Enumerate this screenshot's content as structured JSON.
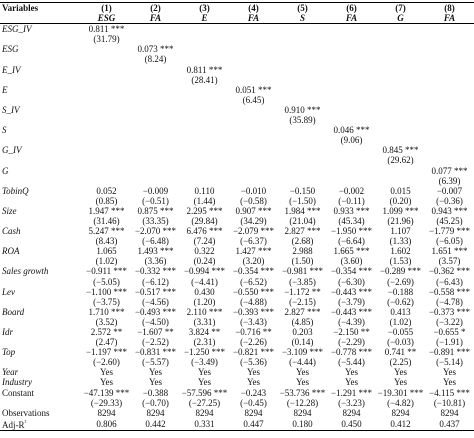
{
  "table": {
    "header": [
      "Variables",
      "(1)",
      "(2)",
      "(3)",
      "(4)",
      "(5)",
      "(6)",
      "(7)",
      "(8)"
    ],
    "subheader": [
      "ESG",
      "FA",
      "E",
      "FA",
      "S",
      "FA",
      "G",
      "FA"
    ],
    "rows": [
      {
        "label": "ESG_IV",
        "values": [
          "0.811 ***",
          null,
          null,
          null,
          null,
          null,
          null,
          null
        ],
        "tstats": [
          "(31.79)",
          null,
          null,
          null,
          null,
          null,
          null,
          null
        ]
      },
      {
        "label": "ESG",
        "values": [
          null,
          "0.073 ***",
          null,
          null,
          null,
          null,
          null,
          null
        ],
        "tstats": [
          null,
          "(8.24)",
          null,
          null,
          null,
          null,
          null,
          null
        ]
      },
      {
        "label": "E_IV",
        "values": [
          null,
          null,
          "0.811 ***",
          null,
          null,
          null,
          null,
          null
        ],
        "tstats": [
          null,
          null,
          "(28.41)",
          null,
          null,
          null,
          null,
          null
        ]
      },
      {
        "label": "E",
        "values": [
          null,
          null,
          null,
          "0.051 ***",
          null,
          null,
          null,
          null
        ],
        "tstats": [
          null,
          null,
          null,
          "(6.45)",
          null,
          null,
          null,
          null
        ]
      },
      {
        "label": "S_IV",
        "values": [
          null,
          null,
          null,
          null,
          "0.910 ***",
          null,
          null,
          null
        ],
        "tstats": [
          null,
          null,
          null,
          null,
          "(35.89)",
          null,
          null,
          null
        ]
      },
      {
        "label": "S",
        "values": [
          null,
          null,
          null,
          null,
          null,
          "0.046 ***",
          null,
          null
        ],
        "tstats": [
          null,
          null,
          null,
          null,
          null,
          "(9.06)",
          null,
          null
        ]
      },
      {
        "label": "G_IV",
        "values": [
          null,
          null,
          null,
          null,
          null,
          null,
          "0.845 ***",
          null
        ],
        "tstats": [
          null,
          null,
          null,
          null,
          null,
          null,
          "(29.62)",
          null
        ]
      },
      {
        "label": "G",
        "values": [
          null,
          null,
          null,
          null,
          null,
          null,
          null,
          "0.077 ***"
        ],
        "tstats": [
          null,
          null,
          null,
          null,
          null,
          null,
          null,
          "(6.39)"
        ]
      },
      {
        "label": "TobinQ",
        "values": [
          "0.052",
          "−0.009",
          "0.110",
          "−0.010",
          "−0.150",
          "−0.002",
          "0.015",
          "−0.007"
        ],
        "tstats": [
          "(0.85)",
          "(−0.51)",
          "(1.44)",
          "(−0.58)",
          "(−1.50)",
          "(−0.11)",
          "(0.20)",
          "(−0.36)"
        ]
      },
      {
        "label": "Size",
        "values": [
          "1.947 ***",
          "0.875 ***",
          "2.295 ***",
          "0.907 ***",
          "1.984 ***",
          "0.933 ***",
          "1.099 ***",
          "0.943 ***"
        ],
        "tstats": [
          "(31.46)",
          "(33.35)",
          "(29.84)",
          "(34.29)",
          "(21.04)",
          "(45.34)",
          "(21.96)",
          "(45.25)"
        ]
      },
      {
        "label": "Cash",
        "values": [
          "5.247 ***",
          "−2.070 ***",
          "6.476 ***",
          "−2.079 ***",
          "2.827 ***",
          "−1.950 ***",
          "1.107",
          "−1.779 ***"
        ],
        "tstats": [
          "(8.43)",
          "(−6.48)",
          "(7.24)",
          "(−6.37)",
          "(2.68)",
          "(−6.64)",
          "(1.33)",
          "(−6.05)"
        ]
      },
      {
        "label": "ROA",
        "values": [
          "1.065",
          "1.493 ***",
          "0.322",
          "1.427 ***",
          "2.988",
          "1.665 ***",
          "1.602",
          "1.651 ***"
        ],
        "tstats": [
          "(1.02)",
          "(3.36)",
          "(0.24)",
          "(3.20)",
          "(1.50)",
          "(3.60)",
          "(1.53)",
          "(3.57)"
        ]
      },
      {
        "label": "Sales growth",
        "values": [
          "−0.911 ***",
          "−0.332 ***",
          "−0.994 ***",
          "−0.354 ***",
          "−0.981 ***",
          "−0.354 ***",
          "−0.289 ***",
          "−0.362 ***"
        ],
        "tstats": [
          "(−5.05)",
          "(−6.12)",
          "(−4.41)",
          "(−6.52)",
          "(−3.85)",
          "(−6.30)",
          "(−2.69)",
          "(−6.43)"
        ]
      },
      {
        "label": "Lev",
        "values": [
          "−1.100 ***",
          "−0.517 ***",
          "0.430",
          "−0.550 ***",
          "−1.172 **",
          "−0.443 ***",
          "−0.188",
          "−0.558 ***"
        ],
        "tstats": [
          "(−3.75)",
          "(−4.56)",
          "(1.20)",
          "(−4.88)",
          "(−2.15)",
          "(−3.79)",
          "(−0.62)",
          "(−4.78)"
        ]
      },
      {
        "label": "Board",
        "values": [
          "1.710 ***",
          "−0.493 ***",
          "2.110 ***",
          "−0.393 ***",
          "2.827 ***",
          "−0.443 ***",
          "0.413",
          "−0.373 ***"
        ],
        "tstats": [
          "(3.52)",
          "(−4.50)",
          "(3.31)",
          "(−3.43)",
          "(4.85)",
          "(−4.39)",
          "(1.02)",
          "(−3.22)"
        ]
      },
      {
        "label": "Idr",
        "values": [
          "2.572 **",
          "−1.607 **",
          "3.824 **",
          "−0.716 **",
          "0.203",
          "−2.150 **",
          "−0.055",
          "−0.655 *"
        ],
        "tstats": [
          "(2.47)",
          "(−2.52)",
          "(2.31)",
          "(−2.26)",
          "(0.14)",
          "(−2.29)",
          "(−0.03)",
          "(−1.91)"
        ]
      },
      {
        "label": "Top",
        "values": [
          "−1.197 ***",
          "−0.831 ***",
          "−1.250 ***",
          "−0.821 ***",
          "−3.109 ***",
          "−0.778 ***",
          "0.741 **",
          "−0.891 ***"
        ],
        "tstats": [
          "(−2.60)",
          "(−5.57)",
          "(−3.49)",
          "(−5.36)",
          "(−4.44)",
          "(−5.44)",
          "(2.25)",
          "(−5.14)"
        ]
      },
      {
        "label": "Year",
        "values": [
          "Yes",
          "Yes",
          "Yes",
          "Yes",
          "Yes",
          "Yes",
          "Yes",
          "Yes"
        ]
      },
      {
        "label": "Industry",
        "values": [
          "Yes",
          "Yes",
          "Yes",
          "Yes",
          "Yes",
          "Yes",
          "Yes",
          "Yes"
        ]
      },
      {
        "label": "Constant",
        "values": [
          "−47.139 ***",
          "−0.388",
          "−57.596 ***",
          "−0.243",
          "−53.736 ***",
          "−1.291 ***",
          "−19.301 ***",
          "−4.115 ***"
        ],
        "tstats": [
          "(−29.33)",
          "(−0.70)",
          "(−27.25)",
          "(−0.45)",
          "(−12.28)",
          "(−3.23)",
          "(−4.82)",
          "(−10.81)"
        ]
      },
      {
        "label": "Observations",
        "values": [
          "8294",
          "8294",
          "8294",
          "8294",
          "8294",
          "8294",
          "8294",
          "8294"
        ]
      },
      {
        "label": "Adj-R²",
        "values": [
          "0.806",
          "0.442",
          "0.331",
          "0.447",
          "0.180",
          "0.450",
          "0.412",
          "0.437"
        ]
      }
    ],
    "italic_labels": [
      "ESG_IV",
      "ESG",
      "E_IV",
      "E",
      "S_IV",
      "S",
      "G_IV",
      "G",
      "TobinQ",
      "Size",
      "Cash",
      "ROA",
      "Sales growth",
      "Lev",
      "Board",
      "Idr",
      "Top",
      "Year",
      "Industry"
    ]
  }
}
